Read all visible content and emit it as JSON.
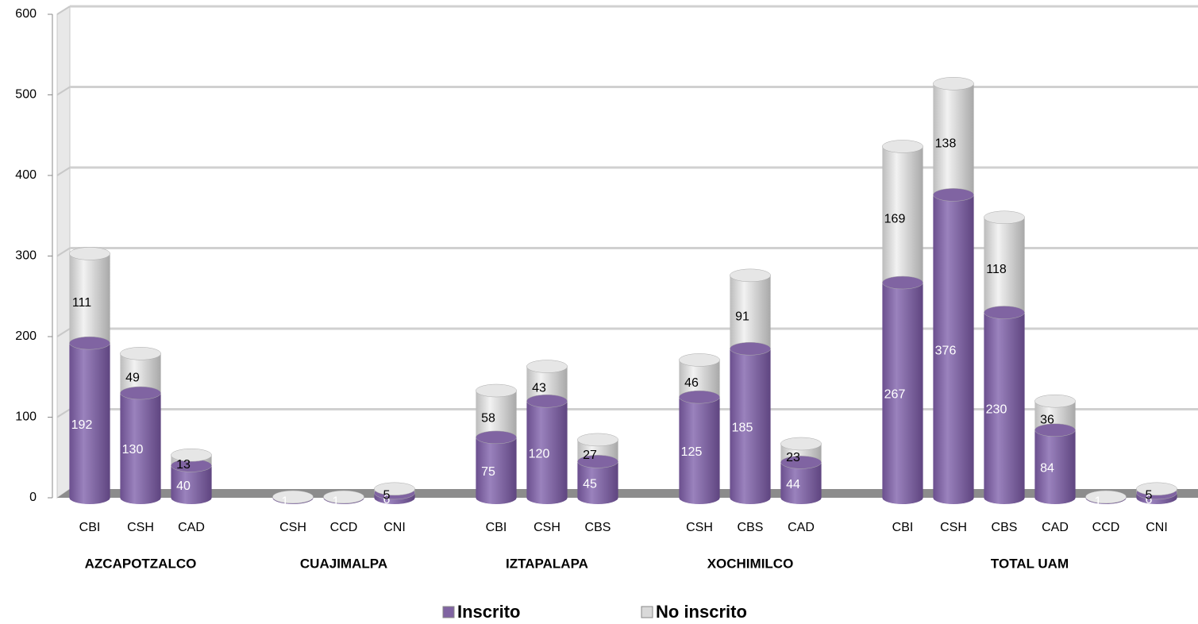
{
  "chart_data": {
    "type": "bar",
    "stacked": true,
    "categories": [
      "CBI",
      "CSH",
      "CAD",
      null,
      "CSH",
      "CCD",
      "CNI",
      null,
      "CBI",
      "CSH",
      "CBS",
      null,
      "CSH",
      "CBS",
      "CAD",
      null,
      "CBI",
      "CSH",
      "CBS",
      "CAD",
      "CCD",
      "CNI"
    ],
    "groups": [
      "AZCAPOTZALCO",
      "CUAJIMALPA",
      "IZTAPALAPA",
      "XOCHIMILCO",
      "TOTAL UAM"
    ],
    "series": [
      {
        "name": "Inscrito",
        "color": "#8064a2",
        "label_color": "#ffffff",
        "values": [
          192,
          130,
          40,
          null,
          1,
          1,
          6,
          null,
          75,
          120,
          45,
          null,
          125,
          185,
          44,
          null,
          267,
          376,
          230,
          84,
          1,
          6
        ]
      },
      {
        "name": "No inscrito",
        "color": "#d9d9d9",
        "label_color": "#000000",
        "values": [
          111,
          49,
          13,
          null,
          null,
          null,
          5,
          null,
          58,
          43,
          27,
          null,
          46,
          91,
          23,
          null,
          169,
          138,
          118,
          36,
          null,
          5
        ]
      }
    ],
    "ylim": [
      0,
      600
    ],
    "yticks": [
      0,
      100,
      200,
      300,
      400,
      500,
      600
    ],
    "grid": true,
    "legend": "bottom"
  }
}
